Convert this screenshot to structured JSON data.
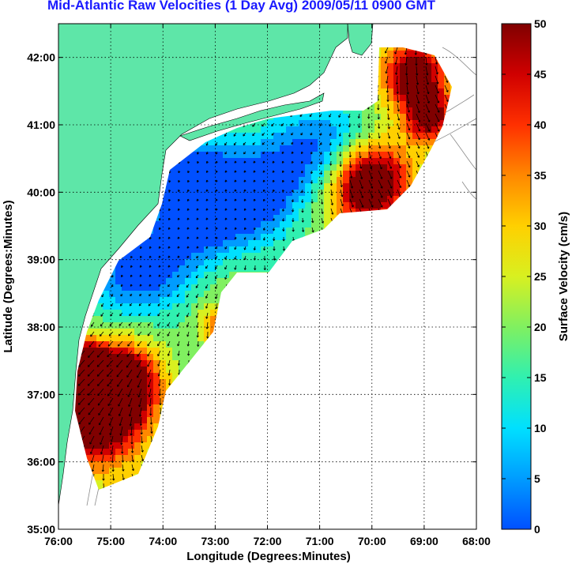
{
  "title": "Mid-Atlantic Raw Velocities (1 Day Avg) 2009/05/11 0900 GMT",
  "map": {
    "xlabel": "Longitude (Degrees:Minutes)",
    "ylabel": "Latitude (Degrees:Minutes)",
    "x_ticks": [
      "76:00",
      "75:00",
      "74:00",
      "73:00",
      "72:00",
      "71:00",
      "70:00",
      "69:00",
      "68:00"
    ],
    "y_ticks": [
      "35:00",
      "36:00",
      "37:00",
      "38:00",
      "39:00",
      "40:00",
      "41:00",
      "42:00"
    ],
    "lon_range": [
      -76,
      -68
    ],
    "lat_range": [
      35,
      42.5
    ],
    "land_color": "#5ee6a8",
    "grid": "dotted"
  },
  "colorbar": {
    "label": "Surface Velocity (cm/s)",
    "ticks": [
      "0",
      "5",
      "10",
      "15",
      "20",
      "25",
      "30",
      "35",
      "40",
      "45",
      "50"
    ],
    "range": [
      0,
      50
    ]
  }
}
